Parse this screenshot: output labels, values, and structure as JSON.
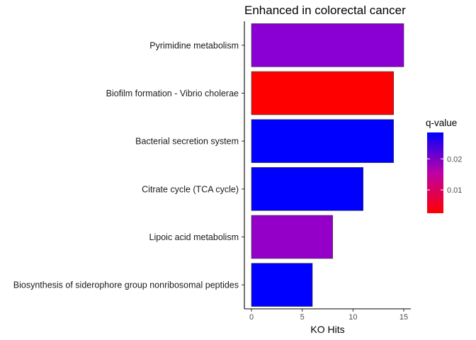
{
  "chart_data": {
    "type": "bar",
    "orientation": "horizontal",
    "title": "Enhanced in colorectal cancer",
    "xlabel": "KO Hits",
    "ylabel": "",
    "xlim": [
      0,
      15
    ],
    "x_ticks": [
      0,
      5,
      10,
      15
    ],
    "categories": [
      "Pyrimidine metabolism",
      "Biofilm formation - Vibrio cholerae",
      "Bacterial secretion system",
      "Citrate cycle (TCA cycle)",
      "Lipoic acid metabolism",
      "Biosynthesis of siderophore group nonribosomal peptides"
    ],
    "values": [
      15,
      14,
      14,
      11,
      8,
      6
    ],
    "bar_colors": [
      "#8a00d4",
      "#ff0000",
      "#0000ff",
      "#0000ff",
      "#9400c8",
      "#0000ff"
    ],
    "color_scale": {
      "title": "q-value",
      "low_color": "#ff0000",
      "high_color": "#0000ff",
      "ticks": [
        0.01,
        0.02
      ],
      "tick_labels": [
        "0.01",
        "0.02"
      ],
      "range": [
        0.0025,
        0.0285
      ]
    },
    "grid": false,
    "legend_position": "right"
  }
}
